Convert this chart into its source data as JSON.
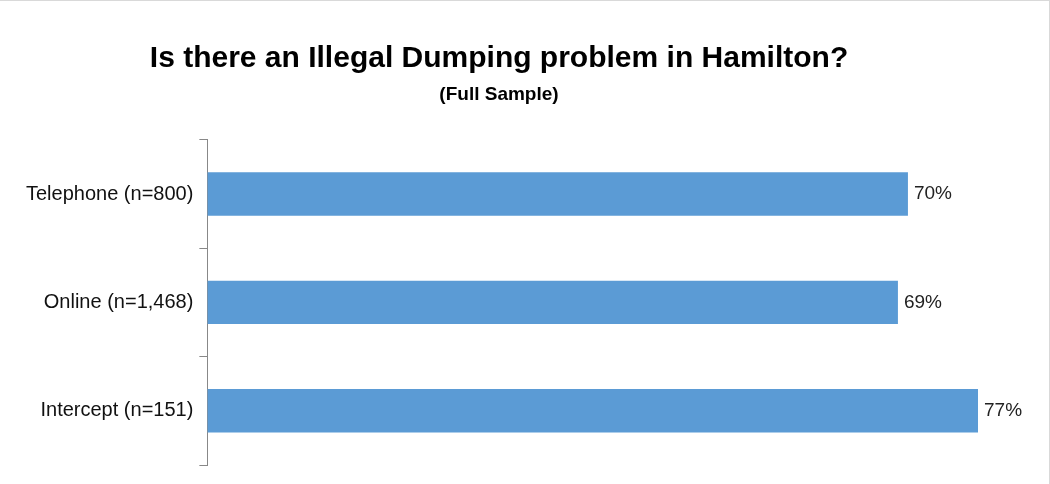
{
  "chart_data": {
    "type": "bar",
    "orientation": "horizontal",
    "title": "Is there an Illegal Dumping problem in Hamilton?",
    "subtitle": "(Full Sample)",
    "categories": [
      "Telephone (n=800)",
      "Online (n=1,468)",
      "Intercept (n=151)"
    ],
    "values": [
      70,
      69,
      77
    ],
    "color": "#5b9bd5",
    "value_labels": [
      "70%",
      "69%",
      "77%"
    ],
    "legend": false
  }
}
